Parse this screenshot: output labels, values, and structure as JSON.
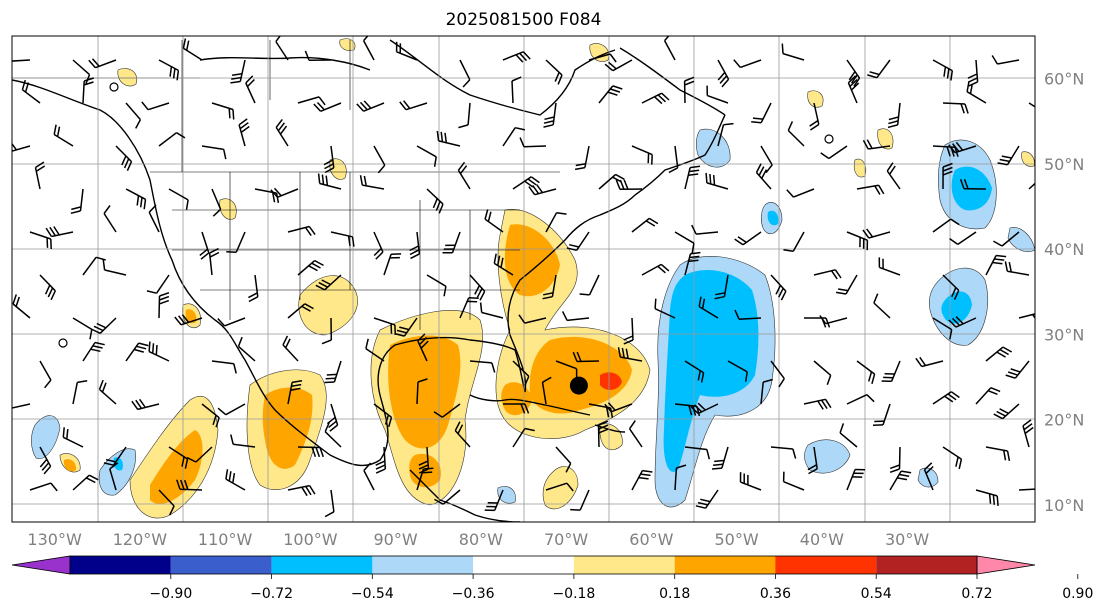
{
  "title": "2025081500 F084",
  "lon_labels": [
    "130°W",
    "120°W",
    "110°W",
    "100°W",
    "90°W",
    "80°W",
    "70°W",
    "60°W",
    "50°W",
    "40°W",
    "30°W"
  ],
  "lat_labels": [
    "60°N",
    "50°N",
    "40°N",
    "30°N",
    "20°N",
    "10°N"
  ],
  "colorbar": {
    "ticks": [
      "−0.90",
      "−0.72",
      "−0.54",
      "−0.36",
      "−0.18",
      "0.18",
      "0.36",
      "0.54",
      "0.72",
      "0.90"
    ],
    "colors": [
      "#9932cc",
      "#00008b",
      "#3a5fcd",
      "#00bfff",
      "#add8f8",
      "#ffffff",
      "#ffe88a",
      "#ffa500",
      "#ff3300",
      "#b22222",
      "#ff88aa"
    ]
  },
  "colors": {
    "weak_pos": "#ffe88a",
    "mid_pos": "#ffa500",
    "strong_pos": "#ff3300",
    "weak_neg": "#add8f8",
    "mid_neg": "#00bfff",
    "grid": "#999999",
    "axis_label": "#808080"
  },
  "marker": {
    "lon": -68.5,
    "lat": 24.0
  }
}
